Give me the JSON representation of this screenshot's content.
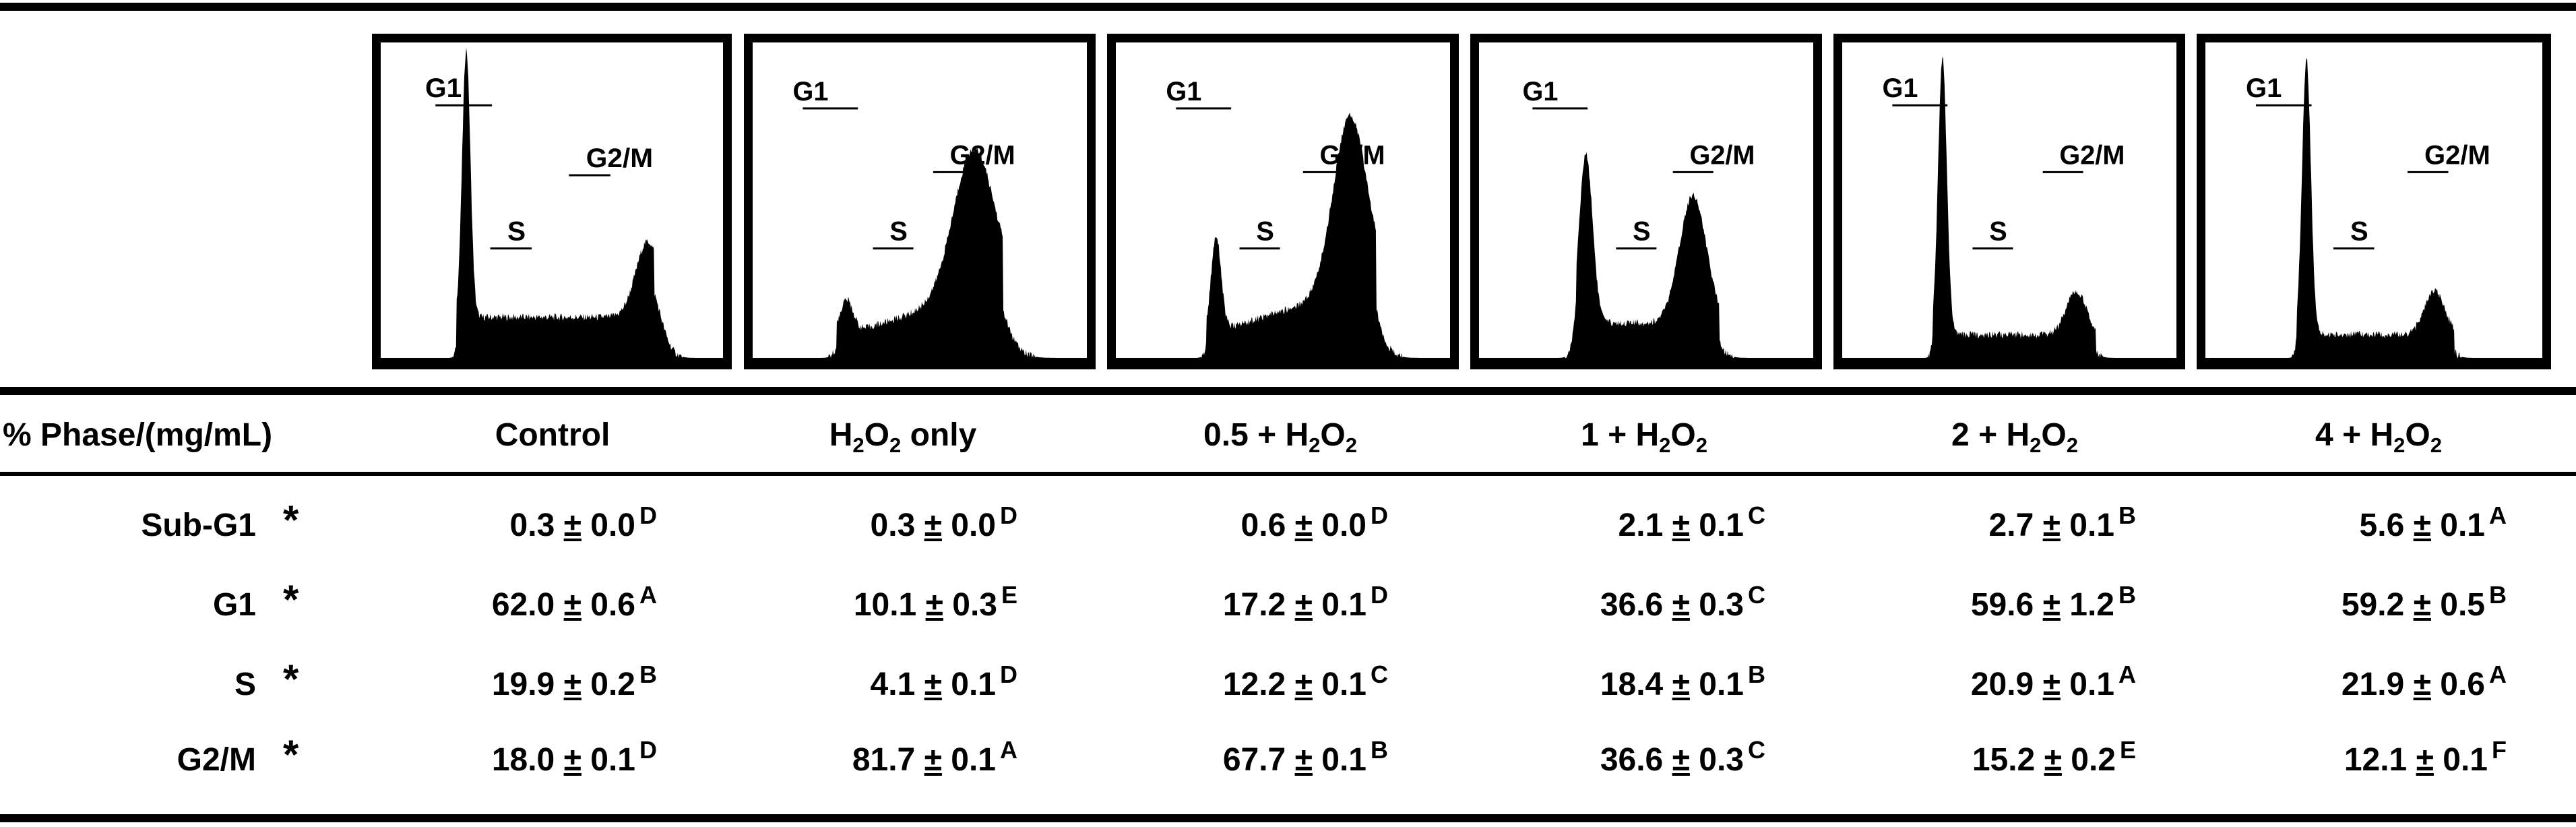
{
  "panels": [
    {
      "column": "Control",
      "labels": {
        "g1": "G1",
        "s": "S",
        "g2m": "G2/M"
      }
    },
    {
      "column": "H2O2 only",
      "labels": {
        "g1": "G1",
        "s": "S",
        "g2m": "G2/M"
      }
    },
    {
      "column": "0.5 + H2O2",
      "labels": {
        "g1": "G1",
        "s": "S",
        "g2m": "G2/M"
      }
    },
    {
      "column": "1 + H2O2",
      "labels": {
        "g1": "G1",
        "s": "S",
        "g2m": "G2/M"
      }
    },
    {
      "column": "2 + H2O2",
      "labels": {
        "g1": "G1",
        "s": "S",
        "g2m": "G2/M"
      }
    },
    {
      "column": "4 + H2O2",
      "labels": {
        "g1": "G1",
        "s": "S",
        "g2m": "G2/M"
      }
    }
  ],
  "table": {
    "first_header": "% Phase/(mg/mL)",
    "columns": [
      {
        "pre": "Control",
        "sub": "",
        "post": ""
      },
      {
        "pre": "H",
        "sub": "2",
        "mid": "O",
        "sub2": "2",
        "post": " only"
      },
      {
        "pre": "0.5 + H",
        "sub": "2",
        "mid": "O",
        "sub2": "2",
        "post": ""
      },
      {
        "pre": "1 + H",
        "sub": "2",
        "mid": "O",
        "sub2": "2",
        "post": ""
      },
      {
        "pre": "2 + H",
        "sub": "2",
        "mid": "O",
        "sub2": "2",
        "post": ""
      },
      {
        "pre": "4 + H",
        "sub": "2",
        "mid": "O",
        "sub2": "2",
        "post": ""
      }
    ],
    "significance_mark": "*",
    "rows": [
      {
        "label": "Sub-G1",
        "cells": [
          {
            "mean": "0.3",
            "pm": "±",
            "sd": "0.0",
            "letter": "D"
          },
          {
            "mean": "0.3",
            "pm": "±",
            "sd": "0.0",
            "letter": "D"
          },
          {
            "mean": "0.6",
            "pm": "±",
            "sd": "0.0",
            "letter": "D"
          },
          {
            "mean": "2.1",
            "pm": "±",
            "sd": "0.1",
            "letter": "C"
          },
          {
            "mean": "2.7",
            "pm": "±",
            "sd": "0.1",
            "letter": "B"
          },
          {
            "mean": "5.6",
            "pm": "±",
            "sd": "0.1",
            "letter": "A"
          }
        ]
      },
      {
        "label": "G1",
        "cells": [
          {
            "mean": "62.0",
            "pm": "±",
            "sd": "0.6",
            "letter": "A"
          },
          {
            "mean": "10.1",
            "pm": "±",
            "sd": "0.3",
            "letter": "E"
          },
          {
            "mean": "17.2",
            "pm": "±",
            "sd": "0.1",
            "letter": "D"
          },
          {
            "mean": "36.6",
            "pm": "±",
            "sd": "0.3",
            "letter": "C"
          },
          {
            "mean": "59.6",
            "pm": "±",
            "sd": "1.2",
            "letter": "B"
          },
          {
            "mean": "59.2",
            "pm": "±",
            "sd": "0.5",
            "letter": "B"
          }
        ]
      },
      {
        "label": "S",
        "cells": [
          {
            "mean": "19.9",
            "pm": "±",
            "sd": "0.2",
            "letter": "B"
          },
          {
            "mean": "4.1",
            "pm": "±",
            "sd": "0.1",
            "letter": "D"
          },
          {
            "mean": "12.2",
            "pm": "±",
            "sd": "0.1",
            "letter": "C"
          },
          {
            "mean": "18.4",
            "pm": "±",
            "sd": "0.1",
            "letter": "B"
          },
          {
            "mean": "20.9",
            "pm": "±",
            "sd": "0.1",
            "letter": "A"
          },
          {
            "mean": "21.9",
            "pm": "±",
            "sd": "0.6",
            "letter": "A"
          }
        ]
      },
      {
        "label": "G2/M",
        "cells": [
          {
            "mean": "18.0",
            "pm": "±",
            "sd": "0.1",
            "letter": "D"
          },
          {
            "mean": "81.7",
            "pm": "±",
            "sd": "0.1",
            "letter": "A"
          },
          {
            "mean": "67.7",
            "pm": "±",
            "sd": "0.1",
            "letter": "B"
          },
          {
            "mean": "36.6",
            "pm": "±",
            "sd": "0.3",
            "letter": "C"
          },
          {
            "mean": "15.2",
            "pm": "±",
            "sd": "0.2",
            "letter": "E"
          },
          {
            "mean": "12.1",
            "pm": "±",
            "sd": "0.1",
            "letter": "F"
          }
        ]
      }
    ]
  }
}
